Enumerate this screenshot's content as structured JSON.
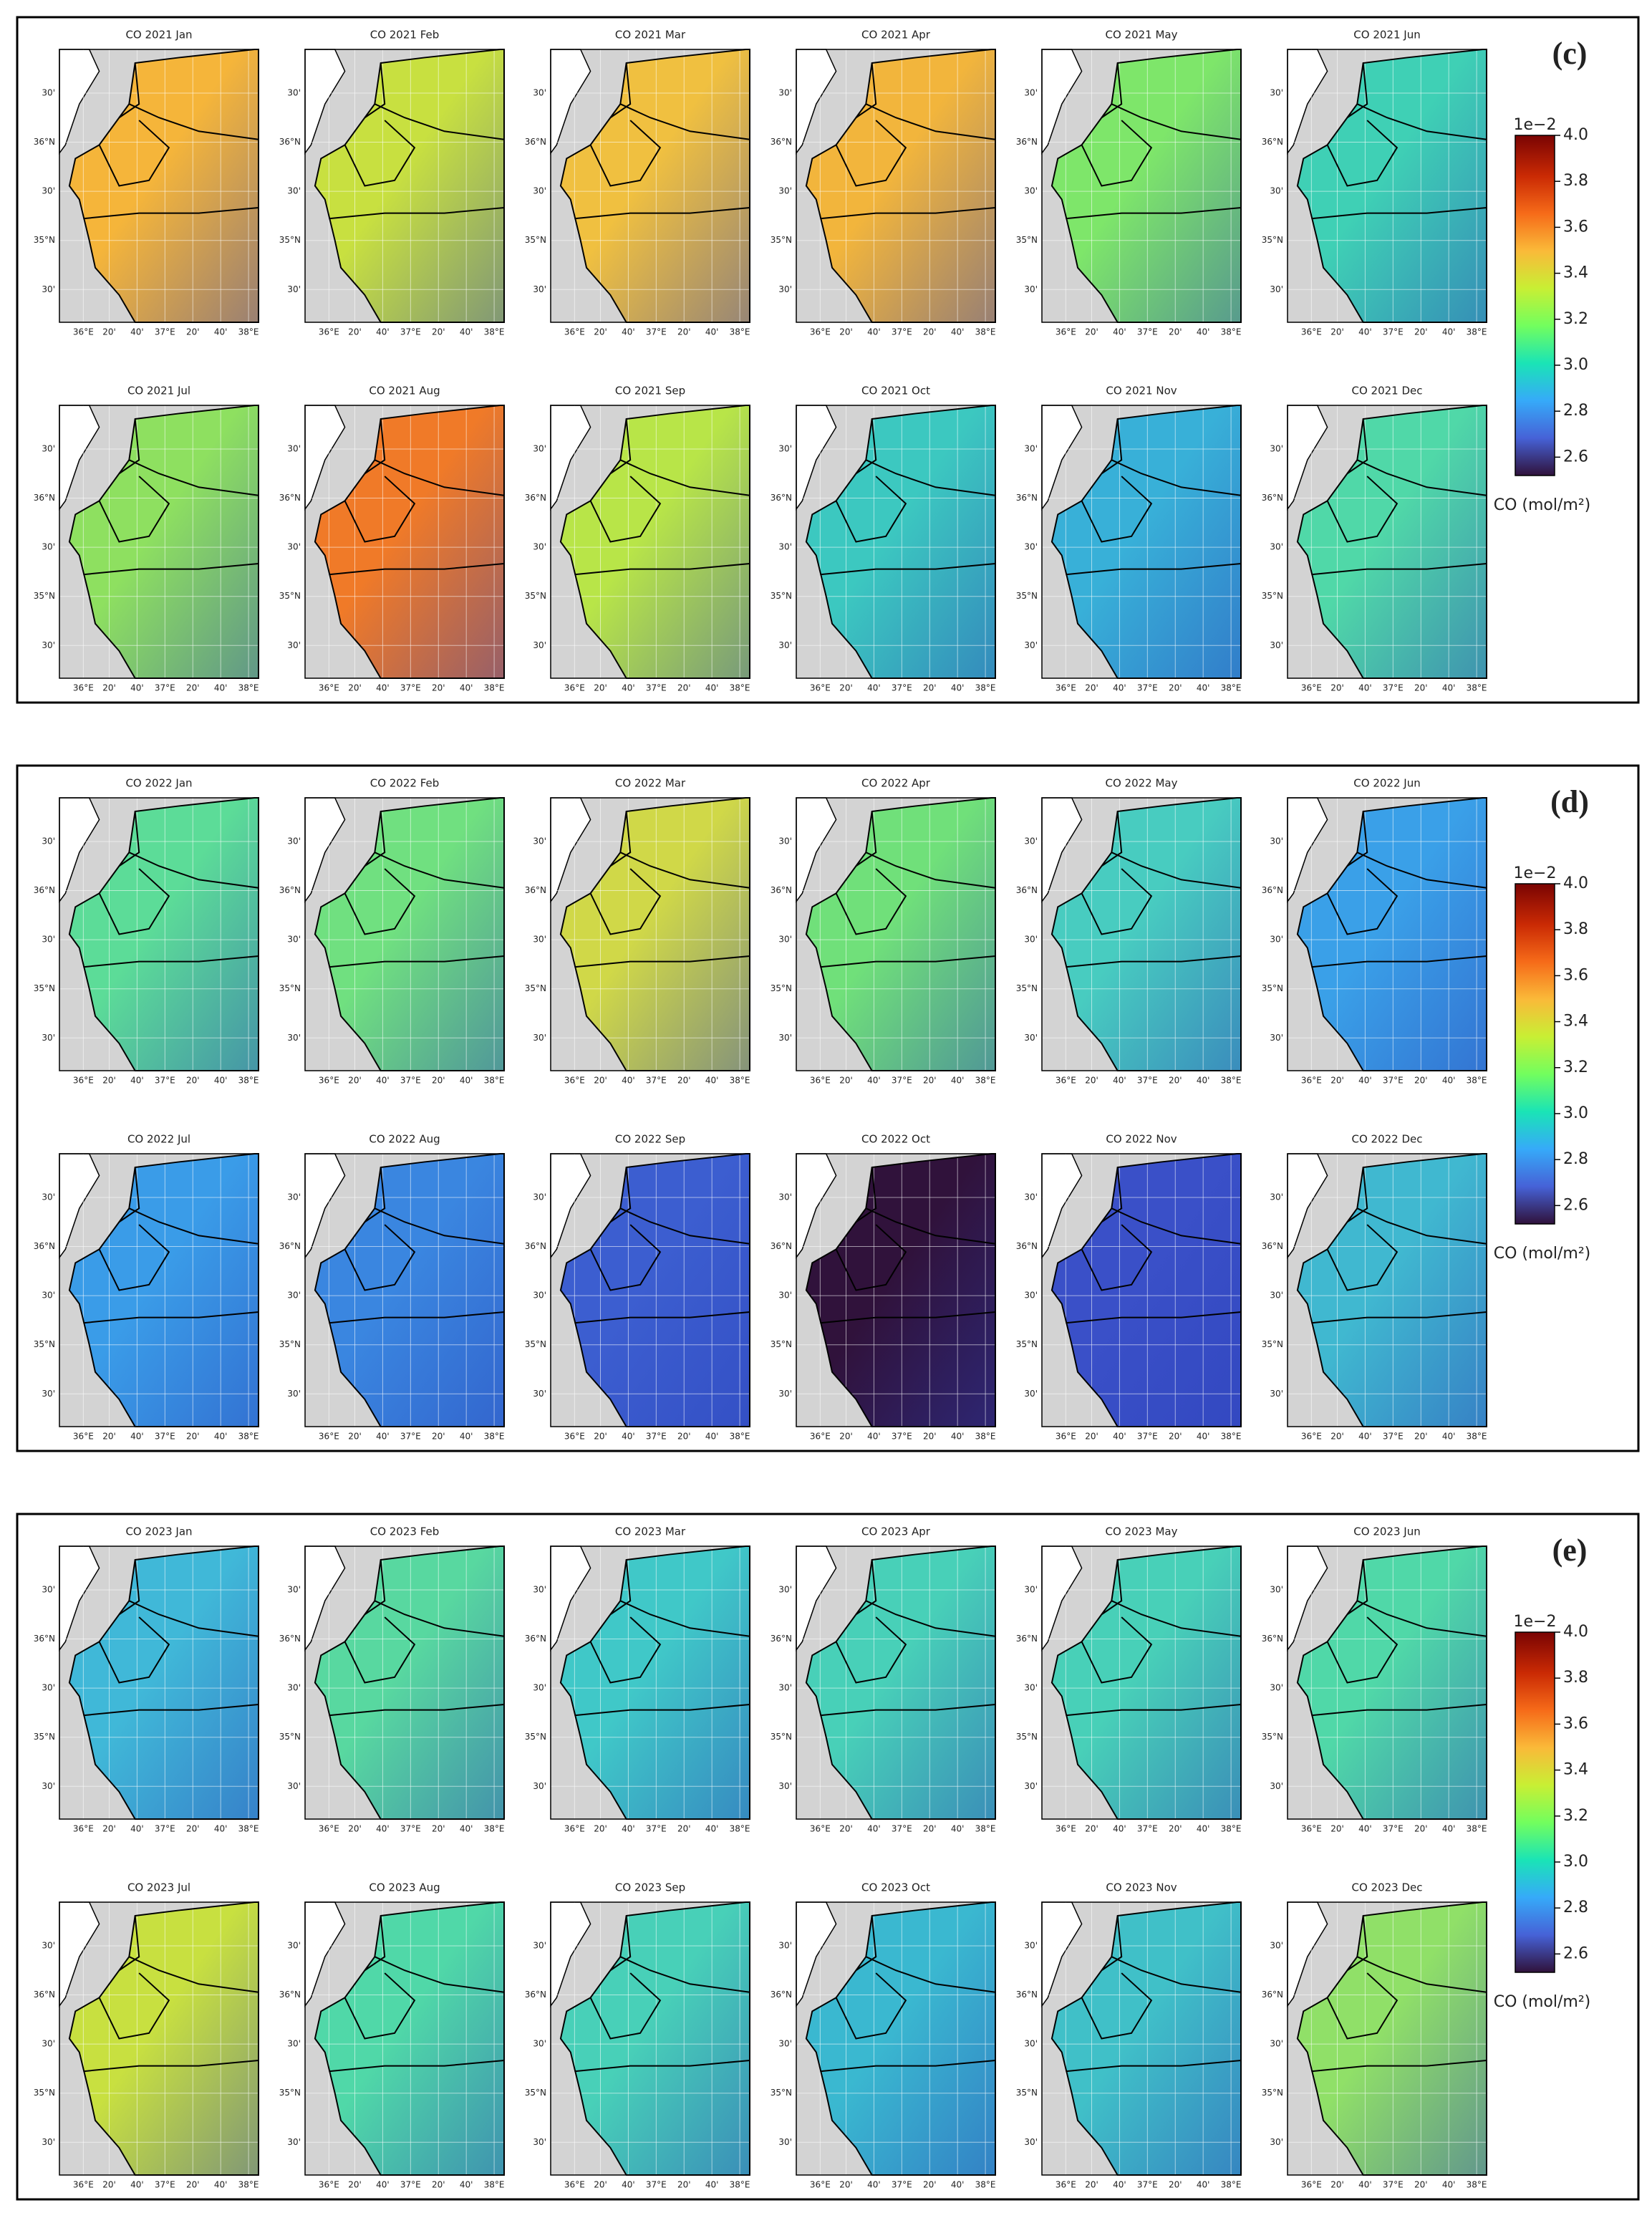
{
  "axes": {
    "lat_ticks": [
      "30'",
      "36°N",
      "30'",
      "35°N",
      "30'"
    ],
    "lon_ticks": [
      "36°E",
      "20'",
      "40'",
      "37°E",
      "20'",
      "40'",
      "38°E"
    ]
  },
  "panels": [
    {
      "label": "(c)",
      "colorbar": {
        "exponent": "1e−2",
        "label": "CO (mol/m²)",
        "range": [
          2.52,
          4.0
        ],
        "ticks": [
          2.6,
          2.8,
          {
            "value": 3,
            "label": "3.0"
          },
          3.2,
          3.4,
          3.6,
          3.8,
          {
            "value": 4,
            "label": "4.0"
          }
        ]
      },
      "maps": [
        {
          "title": "CO 2021 Jan",
          "color": "#f5b53a"
        },
        {
          "title": "CO 2021 Feb",
          "color": "#c8e040"
        },
        {
          "title": "CO 2021 Mar",
          "color": "#f0c040"
        },
        {
          "title": "CO 2021 Apr",
          "color": "#f2b53c"
        },
        {
          "title": "CO 2021 May",
          "color": "#7ee66a"
        },
        {
          "title": "CO 2021 Jun",
          "color": "#3fd0b5"
        },
        {
          "title": "CO 2021 Jul",
          "color": "#8ee060"
        },
        {
          "title": "CO 2021 Aug",
          "color": "#f07a28"
        },
        {
          "title": "CO 2021 Sep",
          "color": "#b8e548"
        },
        {
          "title": "CO 2021 Oct",
          "color": "#3cc8c0"
        },
        {
          "title": "CO 2021 Nov",
          "color": "#38b0d8"
        },
        {
          "title": "CO 2021 Dec",
          "color": "#50d8a8"
        }
      ]
    },
    {
      "label": "(d)",
      "colorbar": {
        "exponent": "1e−2",
        "label": "CO (mol/m²)",
        "range": [
          2.52,
          4.0
        ],
        "ticks": [
          2.6,
          2.8,
          {
            "value": 3,
            "label": "3.0"
          },
          3.2,
          3.4,
          3.6,
          3.8,
          {
            "value": 4,
            "label": "4.0"
          }
        ]
      },
      "maps": [
        {
          "title": "CO 2022 Jan",
          "color": "#5cdc98"
        },
        {
          "title": "CO 2022 Feb",
          "color": "#70e080"
        },
        {
          "title": "CO 2022 Mar",
          "color": "#d0d848"
        },
        {
          "title": "CO 2022 Apr",
          "color": "#70e07a"
        },
        {
          "title": "CO 2022 May",
          "color": "#48ccc0"
        },
        {
          "title": "CO 2022 Jun",
          "color": "#3aa0e8"
        },
        {
          "title": "CO 2022 Jul",
          "color": "#3a9ce8"
        },
        {
          "title": "CO 2022 Aug",
          "color": "#3a86e0"
        },
        {
          "title": "CO 2022 Sep",
          "color": "#3c5ed0"
        },
        {
          "title": "CO 2022 Oct",
          "color": "#30123b"
        },
        {
          "title": "CO 2022 Nov",
          "color": "#3a50c8"
        },
        {
          "title": "CO 2022 Dec",
          "color": "#40b8d0"
        }
      ]
    },
    {
      "label": "(e)",
      "colorbar": {
        "exponent": "1e−2",
        "label": "CO (mol/m²)",
        "range": [
          2.52,
          4.0
        ],
        "ticks": [
          2.6,
          2.8,
          {
            "value": 3,
            "label": "3.0"
          },
          3.2,
          3.4,
          3.6,
          3.8,
          {
            "value": 4,
            "label": "4.0"
          }
        ]
      },
      "maps": [
        {
          "title": "CO 2023 Jan",
          "color": "#40b8d8"
        },
        {
          "title": "CO 2023 Feb",
          "color": "#58d8a0"
        },
        {
          "title": "CO 2023 Mar",
          "color": "#40c8c8"
        },
        {
          "title": "CO 2023 Apr",
          "color": "#48d0b8"
        },
        {
          "title": "CO 2023 May",
          "color": "#48d0b8"
        },
        {
          "title": "CO 2023 Jun",
          "color": "#50d8a8"
        },
        {
          "title": "CO 2023 Jul",
          "color": "#c8e040"
        },
        {
          "title": "CO 2023 Aug",
          "color": "#50d8a8"
        },
        {
          "title": "CO 2023 Sep",
          "color": "#48d0b8"
        },
        {
          "title": "CO 2023 Oct",
          "color": "#3ab8d0"
        },
        {
          "title": "CO 2023 Nov",
          "color": "#40c0c8"
        },
        {
          "title": "CO 2023 Dec",
          "color": "#90e068"
        }
      ]
    }
  ]
}
